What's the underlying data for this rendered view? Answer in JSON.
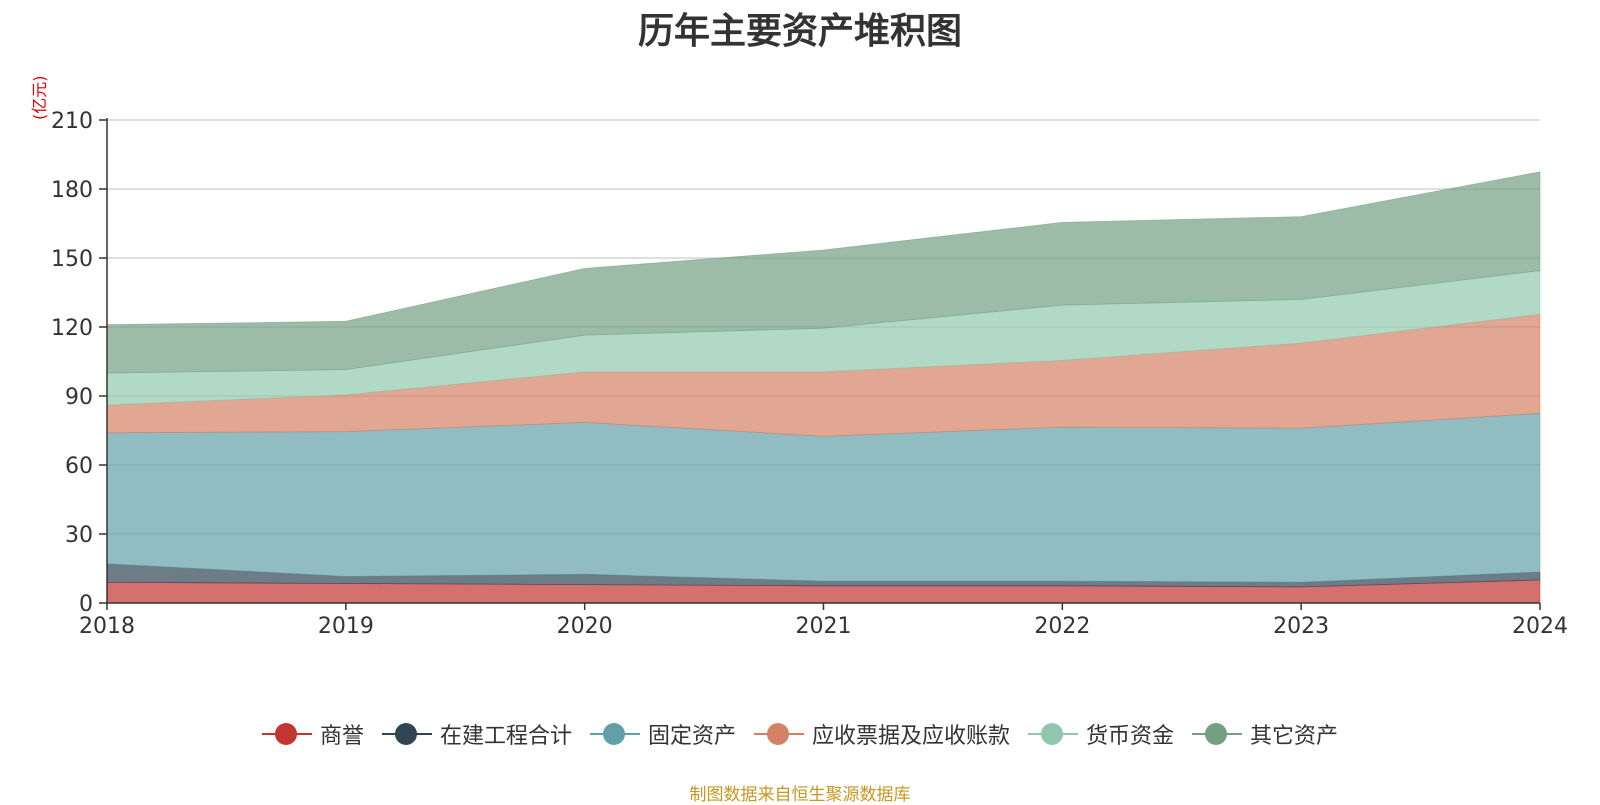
{
  "chart_data": {
    "type": "area",
    "stacked": true,
    "title": "历年主要资产堆积图",
    "ylabel": "(亿元)",
    "xlabel": "",
    "x": [
      "2018",
      "2019",
      "2020",
      "2021",
      "2022",
      "2023",
      "2024"
    ],
    "ylim": [
      0,
      210
    ],
    "yticks": [
      0,
      30,
      60,
      90,
      120,
      150,
      180,
      210
    ],
    "grid": true,
    "legend_position": "bottom",
    "series": [
      {
        "name": "商誉",
        "color": "#c23531",
        "values": [
          9,
          8.5,
          8,
          7.5,
          7.5,
          7,
          10
        ]
      },
      {
        "name": "在建工程合计",
        "color": "#2f4554",
        "values": [
          8,
          3,
          4.5,
          2,
          2,
          2,
          3.5
        ]
      },
      {
        "name": "固定资产",
        "color": "#61a0a8",
        "values": [
          57,
          63,
          66,
          63,
          67,
          67,
          69
        ]
      },
      {
        "name": "应收票据及应收账款",
        "color": "#d48265",
        "values": [
          12,
          16,
          22,
          28,
          29,
          37,
          43
        ]
      },
      {
        "name": "货币资金",
        "color": "#91c7ae",
        "values": [
          14,
          11,
          16,
          19,
          24,
          19,
          19
        ]
      },
      {
        "name": "其它资产",
        "color": "#749f83",
        "values": [
          21,
          21,
          29,
          34,
          36,
          36,
          43
        ]
      }
    ],
    "source": "制图数据来自恒生聚源数据库"
  }
}
